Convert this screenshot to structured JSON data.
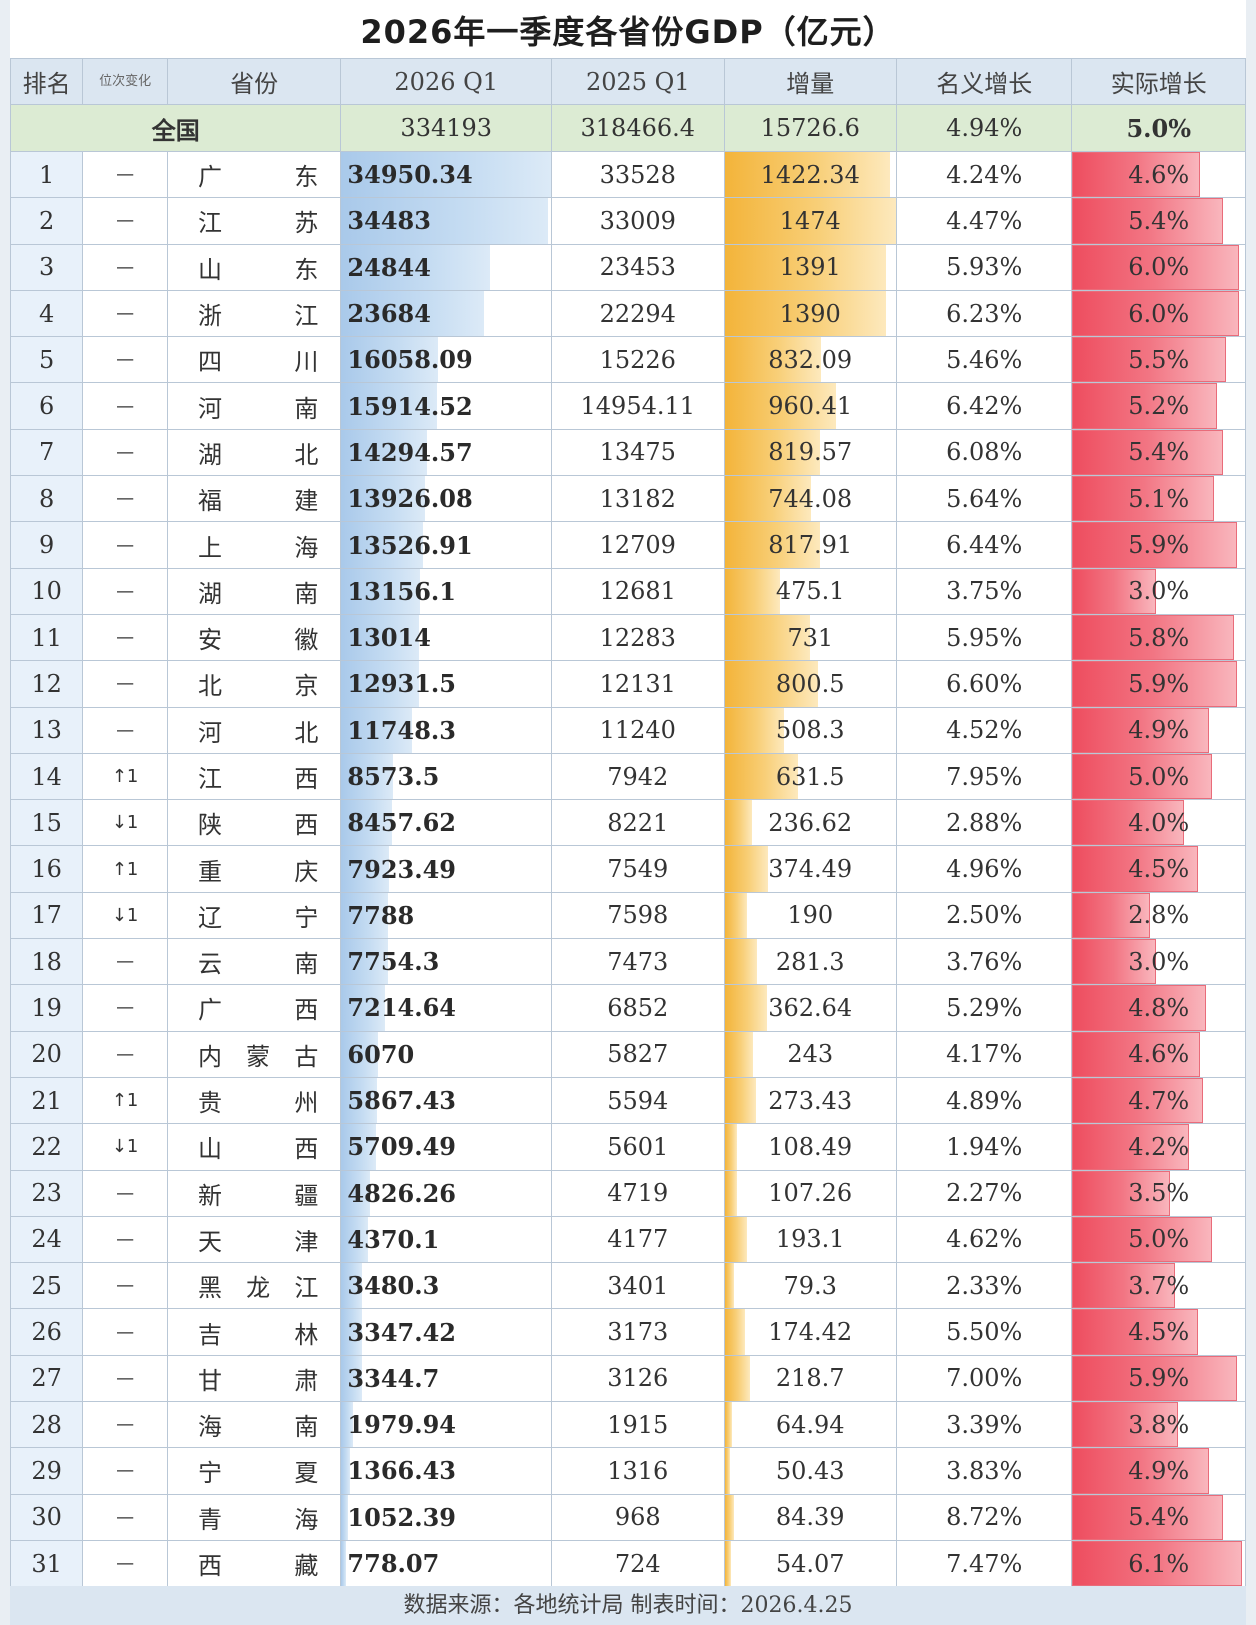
{
  "title": "2026年一季度各省份GDP（亿元）",
  "headers": {
    "rank": "排名",
    "change": "位次变化",
    "province": "省份",
    "q1_2026": "2026 Q1",
    "q1_2025": "2025 Q1",
    "increase": "增量",
    "nominal": "名义增长",
    "real": "实际增长"
  },
  "total": {
    "label": "全国",
    "q1_2026": "334193",
    "q1_2025": "318466.4",
    "increase": "15726.6",
    "nominal": "4.94%",
    "real": "5.0%"
  },
  "rows": [
    {
      "rank": "1",
      "change": "—",
      "province": "广东",
      "q1_2026": "34950.34",
      "q1_2025": "33528",
      "increase": "1422.34",
      "nominal": "4.24%",
      "real": "4.6%"
    },
    {
      "rank": "2",
      "change": "—",
      "province": "江苏",
      "q1_2026": "34483",
      "q1_2025": "33009",
      "increase": "1474",
      "nominal": "4.47%",
      "real": "5.4%"
    },
    {
      "rank": "3",
      "change": "—",
      "province": "山东",
      "q1_2026": "24844",
      "q1_2025": "23453",
      "increase": "1391",
      "nominal": "5.93%",
      "real": "6.0%"
    },
    {
      "rank": "4",
      "change": "—",
      "province": "浙江",
      "q1_2026": "23684",
      "q1_2025": "22294",
      "increase": "1390",
      "nominal": "6.23%",
      "real": "6.0%"
    },
    {
      "rank": "5",
      "change": "—",
      "province": "四川",
      "q1_2026": "16058.09",
      "q1_2025": "15226",
      "increase": "832.09",
      "nominal": "5.46%",
      "real": "5.5%"
    },
    {
      "rank": "6",
      "change": "—",
      "province": "河南",
      "q1_2026": "15914.52",
      "q1_2025": "14954.11",
      "increase": "960.41",
      "nominal": "6.42%",
      "real": "5.2%"
    },
    {
      "rank": "7",
      "change": "—",
      "province": "湖北",
      "q1_2026": "14294.57",
      "q1_2025": "13475",
      "increase": "819.57",
      "nominal": "6.08%",
      "real": "5.4%"
    },
    {
      "rank": "8",
      "change": "—",
      "province": "福建",
      "q1_2026": "13926.08",
      "q1_2025": "13182",
      "increase": "744.08",
      "nominal": "5.64%",
      "real": "5.1%"
    },
    {
      "rank": "9",
      "change": "—",
      "province": "上海",
      "q1_2026": "13526.91",
      "q1_2025": "12709",
      "increase": "817.91",
      "nominal": "6.44%",
      "real": "5.9%"
    },
    {
      "rank": "10",
      "change": "—",
      "province": "湖南",
      "q1_2026": "13156.1",
      "q1_2025": "12681",
      "increase": "475.1",
      "nominal": "3.75%",
      "real": "3.0%"
    },
    {
      "rank": "11",
      "change": "—",
      "province": "安徽",
      "q1_2026": "13014",
      "q1_2025": "12283",
      "increase": "731",
      "nominal": "5.95%",
      "real": "5.8%"
    },
    {
      "rank": "12",
      "change": "—",
      "province": "北京",
      "q1_2026": "12931.5",
      "q1_2025": "12131",
      "increase": "800.5",
      "nominal": "6.60%",
      "real": "5.9%"
    },
    {
      "rank": "13",
      "change": "—",
      "province": "河北",
      "q1_2026": "11748.3",
      "q1_2025": "11240",
      "increase": "508.3",
      "nominal": "4.52%",
      "real": "4.9%"
    },
    {
      "rank": "14",
      "change": "↑1",
      "province": "江西",
      "q1_2026": "8573.5",
      "q1_2025": "7942",
      "increase": "631.5",
      "nominal": "7.95%",
      "real": "5.0%"
    },
    {
      "rank": "15",
      "change": "↓1",
      "province": "陕西",
      "q1_2026": "8457.62",
      "q1_2025": "8221",
      "increase": "236.62",
      "nominal": "2.88%",
      "real": "4.0%"
    },
    {
      "rank": "16",
      "change": "↑1",
      "province": "重庆",
      "q1_2026": "7923.49",
      "q1_2025": "7549",
      "increase": "374.49",
      "nominal": "4.96%",
      "real": "4.5%"
    },
    {
      "rank": "17",
      "change": "↓1",
      "province": "辽宁",
      "q1_2026": "7788",
      "q1_2025": "7598",
      "increase": "190",
      "nominal": "2.50%",
      "real": "2.8%"
    },
    {
      "rank": "18",
      "change": "—",
      "province": "云南",
      "q1_2026": "7754.3",
      "q1_2025": "7473",
      "increase": "281.3",
      "nominal": "3.76%",
      "real": "3.0%"
    },
    {
      "rank": "19",
      "change": "—",
      "province": "广西",
      "q1_2026": "7214.64",
      "q1_2025": "6852",
      "increase": "362.64",
      "nominal": "5.29%",
      "real": "4.8%"
    },
    {
      "rank": "20",
      "change": "—",
      "province": "内蒙古",
      "q1_2026": "6070",
      "q1_2025": "5827",
      "increase": "243",
      "nominal": "4.17%",
      "real": "4.6%"
    },
    {
      "rank": "21",
      "change": "↑1",
      "province": "贵州",
      "q1_2026": "5867.43",
      "q1_2025": "5594",
      "increase": "273.43",
      "nominal": "4.89%",
      "real": "4.7%"
    },
    {
      "rank": "22",
      "change": "↓1",
      "province": "山西",
      "q1_2026": "5709.49",
      "q1_2025": "5601",
      "increase": "108.49",
      "nominal": "1.94%",
      "real": "4.2%"
    },
    {
      "rank": "23",
      "change": "—",
      "province": "新疆",
      "q1_2026": "4826.26",
      "q1_2025": "4719",
      "increase": "107.26",
      "nominal": "2.27%",
      "real": "3.5%"
    },
    {
      "rank": "24",
      "change": "—",
      "province": "天津",
      "q1_2026": "4370.1",
      "q1_2025": "4177",
      "increase": "193.1",
      "nominal": "4.62%",
      "real": "5.0%"
    },
    {
      "rank": "25",
      "change": "—",
      "province": "黑龙江",
      "q1_2026": "3480.3",
      "q1_2025": "3401",
      "increase": "79.3",
      "nominal": "2.33%",
      "real": "3.7%"
    },
    {
      "rank": "26",
      "change": "—",
      "province": "吉林",
      "q1_2026": "3347.42",
      "q1_2025": "3173",
      "increase": "174.42",
      "nominal": "5.50%",
      "real": "4.5%"
    },
    {
      "rank": "27",
      "change": "—",
      "province": "甘肃",
      "q1_2026": "3344.7",
      "q1_2025": "3126",
      "increase": "218.7",
      "nominal": "7.00%",
      "real": "5.9%"
    },
    {
      "rank": "28",
      "change": "—",
      "province": "海南",
      "q1_2026": "1979.94",
      "q1_2025": "1915",
      "increase": "64.94",
      "nominal": "3.39%",
      "real": "3.8%"
    },
    {
      "rank": "29",
      "change": "—",
      "province": "宁夏",
      "q1_2026": "1366.43",
      "q1_2025": "1316",
      "increase": "50.43",
      "nominal": "3.83%",
      "real": "4.9%"
    },
    {
      "rank": "30",
      "change": "—",
      "province": "青海",
      "q1_2026": "1052.39",
      "q1_2025": "968",
      "increase": "84.39",
      "nominal": "8.72%",
      "real": "5.4%"
    },
    {
      "rank": "31",
      "change": "—",
      "province": "西藏",
      "q1_2026": "778.07",
      "q1_2025": "724",
      "increase": "54.07",
      "nominal": "7.47%",
      "real": "6.1%"
    }
  ],
  "footer": "数据来源：各地统计局    制表时间：2026.4.25",
  "colors": {
    "q1_bar": "#a9c9ea",
    "increase_bar": "#f3b43a",
    "real_bar": "#ee4d5f",
    "header_bg": "#dbe6f1",
    "total_bg": "#dcebd3"
  }
}
